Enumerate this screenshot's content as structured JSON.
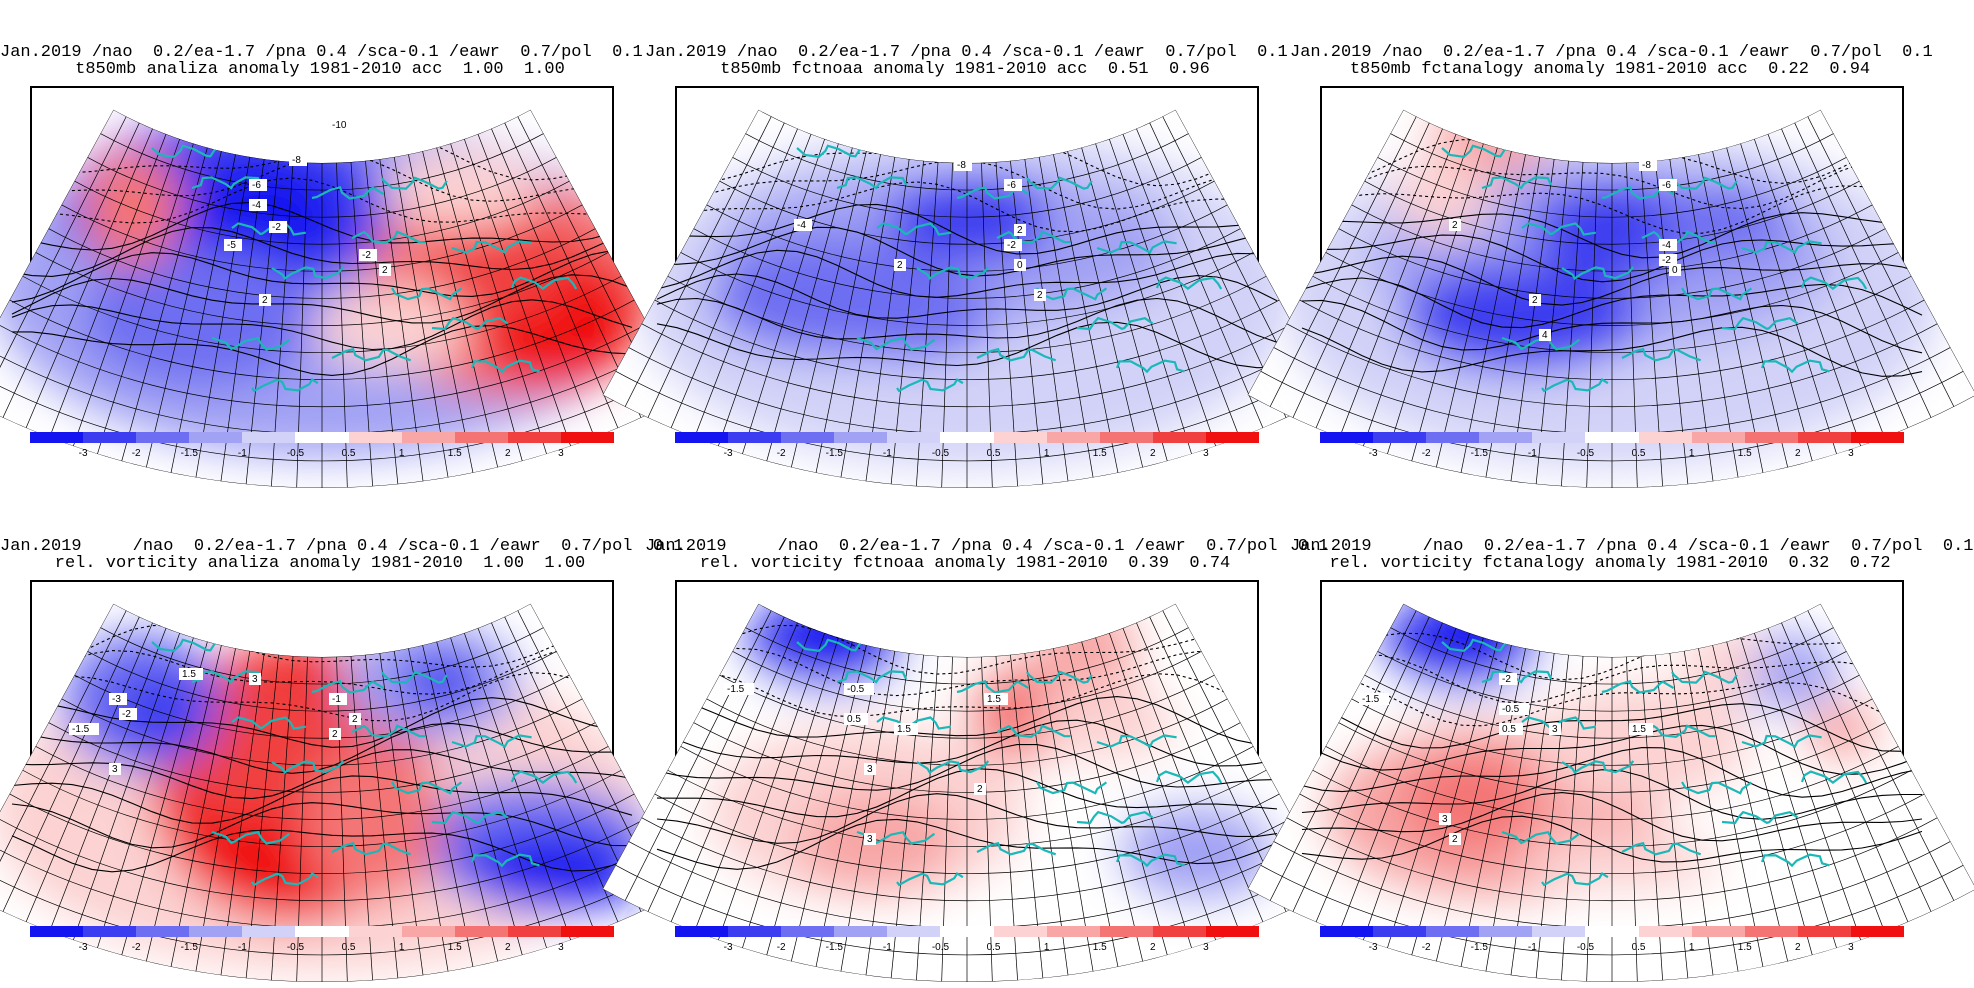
{
  "legend": {
    "colors": [
      "#1414f0",
      "#3c3cf0",
      "#6e6ef2",
      "#a2a2f4",
      "#d2d2f8",
      "#ffffff",
      "#fcd2d2",
      "#f8a6a6",
      "#f47474",
      "#f04040",
      "#f01010"
    ],
    "labels": [
      "-3",
      "-2",
      "-1.5",
      "-1",
      "-0.5",
      "0.5",
      "1",
      "1.5",
      "2",
      "3"
    ]
  },
  "panels": [
    {
      "title_line1": "Jan.2019 /nao  0.2/ea-1.7 /pna 0.4 /sca-0.1 /eawr  0.7/pol  0.1",
      "title_line2": "t850mb analiza anomaly 1981-2010 acc  1.00  1.00",
      "contour_labels": [
        "-10",
        "-8",
        "-6",
        "-4",
        "-2",
        "-5",
        "-2",
        "2",
        "2"
      ]
    },
    {
      "title_line1": "Jan.2019 /nao  0.2/ea-1.7 /pna 0.4 /sca-0.1 /eawr  0.7/pol  0.1",
      "title_line2": "t850mb fctnoaa anomaly 1981-2010 acc  0.51  0.96",
      "contour_labels": [
        "-8",
        "-6",
        "-4",
        "2",
        "-2",
        "2",
        "0",
        "2"
      ]
    },
    {
      "title_line1": "Jan.2019 /nao  0.2/ea-1.7 /pna 0.4 /sca-0.1 /eawr  0.7/pol  0.1",
      "title_line2": "t850mb fctanalogy anomaly 1981-2010 acc  0.22  0.94",
      "contour_labels": [
        "-8",
        "-6",
        "2",
        "-4",
        "-2",
        "0",
        "2",
        "4"
      ]
    },
    {
      "title_line1": "Jan.2019     /nao  0.2/ea-1.7 /pna 0.4 /sca-0.1 /eawr  0.7/pol  0.1",
      "title_line2": "rel. vorticity analiza anomaly 1981-2010  1.00  1.00",
      "contour_labels": [
        "-3",
        "-2",
        "-1.5",
        "1.5",
        "3",
        "2",
        "3",
        "-1",
        "2"
      ]
    },
    {
      "title_line1": "Jan.2019     /nao  0.2/ea-1.7 /pna 0.4 /sca-0.1 /eawr  0.7/pol  0.1",
      "title_line2": "rel. vorticity fctnoaa anomaly 1981-2010  0.39  0.74",
      "contour_labels": [
        "-1.5",
        "-0.5",
        "0.5",
        "1.5",
        "1.5",
        "3",
        "2",
        "3"
      ]
    },
    {
      "title_line1": "Jan.2019     /nao  0.2/ea-1.7 /pna 0.4 /sca-0.1 /eawr  0.7/pol  0.1",
      "title_line2": "rel. vorticity fctanalogy anomaly 1981-2010  0.32  0.72",
      "contour_labels": [
        "-2",
        "-1.5",
        "-0.5",
        "0.5",
        "1.5",
        "3",
        "3",
        "2"
      ]
    }
  ]
}
